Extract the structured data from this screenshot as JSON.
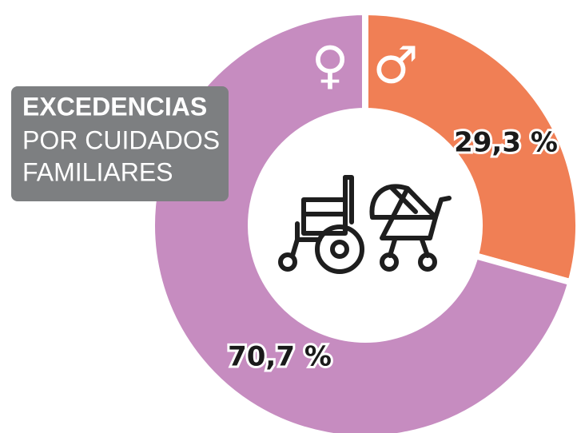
{
  "chart_data": {
    "type": "donut",
    "title": "EXCEDENCIAS",
    "subtitle": [
      "POR CUIDADOS",
      "FAMILIARES"
    ],
    "categories": [
      "♂",
      "♀"
    ],
    "values": [
      29.3,
      70.7
    ],
    "value_labels": [
      "29,3 %",
      "70,7 %"
    ],
    "colors": [
      "#f07f55",
      "#c68cc0"
    ]
  }
}
